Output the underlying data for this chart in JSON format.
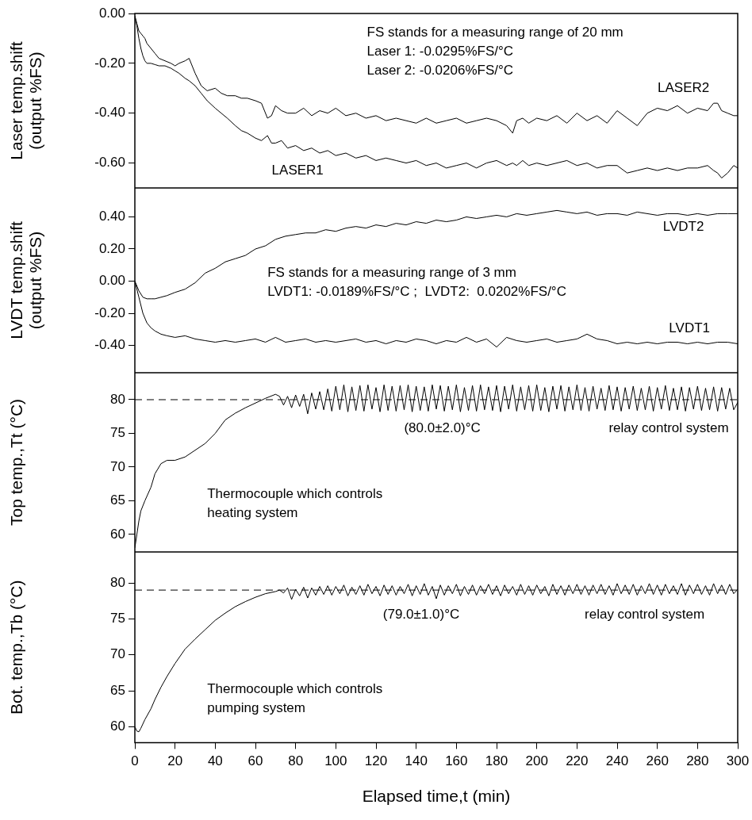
{
  "chart_data": [
    {
      "type": "line",
      "ylabel": "Laser temp.shift\n(output %FS)",
      "xlim": [
        0,
        300
      ],
      "ylim": [
        -0.7,
        0
      ],
      "yticks": [
        {
          "value": 0,
          "label": "0.00"
        },
        {
          "value": -0.2,
          "label": "-0.20"
        },
        {
          "value": -0.4,
          "label": "-0.40"
        },
        {
          "value": -0.6,
          "label": "-0.60"
        }
      ],
      "tick_labels": "y",
      "legend": false,
      "annotations": [
        "FS stands for a measuring range of 20 mm",
        "Laser 1: -0.0295%FS/°C",
        "Laser 2: -0.0206%FS/°C"
      ],
      "x": [
        0,
        1,
        2,
        3,
        4,
        5,
        6,
        8,
        10,
        12,
        15,
        18,
        20,
        22,
        25,
        27,
        30,
        33,
        36,
        40,
        43,
        46,
        50,
        53,
        56,
        60,
        63,
        66,
        68,
        70,
        73,
        76,
        80,
        84,
        88,
        92,
        96,
        100,
        105,
        110,
        115,
        120,
        125,
        130,
        135,
        140,
        145,
        150,
        155,
        160,
        165,
        170,
        175,
        180,
        185,
        188,
        190,
        193,
        196,
        200,
        205,
        210,
        215,
        220,
        225,
        230,
        235,
        240,
        245,
        250,
        255,
        260,
        265,
        270,
        275,
        280,
        285,
        288,
        290,
        292,
        295,
        298,
        300
      ],
      "series": [
        {
          "name": "LASER1",
          "color": "#000000",
          "values": [
            -0.01,
            -0.05,
            -0.1,
            -0.14,
            -0.17,
            -0.19,
            -0.2,
            -0.2,
            -0.205,
            -0.21,
            -0.21,
            -0.22,
            -0.23,
            -0.24,
            -0.26,
            -0.27,
            -0.29,
            -0.32,
            -0.35,
            -0.38,
            -0.4,
            -0.42,
            -0.45,
            -0.47,
            -0.48,
            -0.5,
            -0.51,
            -0.49,
            -0.52,
            -0.52,
            -0.51,
            -0.54,
            -0.53,
            -0.55,
            -0.54,
            -0.56,
            -0.55,
            -0.57,
            -0.56,
            -0.58,
            -0.57,
            -0.59,
            -0.58,
            -0.59,
            -0.6,
            -0.59,
            -0.61,
            -0.6,
            -0.62,
            -0.61,
            -0.6,
            -0.62,
            -0.6,
            -0.59,
            -0.61,
            -0.6,
            -0.61,
            -0.59,
            -0.61,
            -0.6,
            -0.61,
            -0.6,
            -0.59,
            -0.61,
            -0.6,
            -0.62,
            -0.61,
            -0.61,
            -0.64,
            -0.63,
            -0.62,
            -0.63,
            -0.62,
            -0.63,
            -0.62,
            -0.62,
            -0.61,
            -0.63,
            -0.64,
            -0.66,
            -0.64,
            -0.61,
            -0.62
          ]
        },
        {
          "name": "LASER2",
          "color": "#000000",
          "values": [
            -0.01,
            -0.04,
            -0.07,
            -0.08,
            -0.09,
            -0.1,
            -0.12,
            -0.14,
            -0.16,
            -0.18,
            -0.19,
            -0.2,
            -0.21,
            -0.2,
            -0.19,
            -0.18,
            -0.24,
            -0.29,
            -0.31,
            -0.3,
            -0.32,
            -0.33,
            -0.33,
            -0.34,
            -0.34,
            -0.35,
            -0.36,
            -0.42,
            -0.41,
            -0.37,
            -0.39,
            -0.4,
            -0.4,
            -0.38,
            -0.41,
            -0.39,
            -0.4,
            -0.38,
            -0.41,
            -0.4,
            -0.42,
            -0.41,
            -0.43,
            -0.42,
            -0.43,
            -0.44,
            -0.42,
            -0.44,
            -0.43,
            -0.42,
            -0.44,
            -0.43,
            -0.42,
            -0.43,
            -0.45,
            -0.48,
            -0.43,
            -0.42,
            -0.44,
            -0.42,
            -0.43,
            -0.41,
            -0.44,
            -0.4,
            -0.43,
            -0.41,
            -0.44,
            -0.39,
            -0.42,
            -0.45,
            -0.4,
            -0.38,
            -0.39,
            -0.37,
            -0.4,
            -0.38,
            -0.39,
            -0.36,
            -0.36,
            -0.39,
            -0.4,
            -0.41,
            -0.41
          ]
        }
      ]
    },
    {
      "type": "line",
      "ylabel": "LVDT temp.shift\n(output %FS)",
      "xlim": [
        0,
        300
      ],
      "ylim": [
        -0.57,
        0.58
      ],
      "yticks": [
        {
          "value": 0.4,
          "label": "0.40"
        },
        {
          "value": 0.2,
          "label": "0.20"
        },
        {
          "value": 0,
          "label": "0.00"
        },
        {
          "value": -0.2,
          "label": "-0.20"
        },
        {
          "value": -0.4,
          "label": "-0.40"
        }
      ],
      "tick_labels": "y",
      "legend": false,
      "annotations": [
        "FS stands for a measuring range of 3 mm",
        "LVDT1: -0.0189%FS/°C ;  LVDT2:  0.0202%FS/°C"
      ],
      "x": [
        0,
        2,
        4,
        6,
        8,
        10,
        13,
        16,
        20,
        25,
        30,
        35,
        40,
        45,
        50,
        55,
        60,
        65,
        70,
        75,
        80,
        85,
        90,
        95,
        100,
        105,
        110,
        115,
        120,
        125,
        130,
        135,
        140,
        145,
        150,
        155,
        160,
        165,
        170,
        175,
        180,
        185,
        190,
        195,
        200,
        205,
        210,
        215,
        220,
        225,
        230,
        235,
        240,
        245,
        250,
        255,
        260,
        265,
        270,
        275,
        280,
        285,
        290,
        295,
        300
      ],
      "series": [
        {
          "name": "LVDT1",
          "color": "#000000",
          "values": [
            0,
            -0.1,
            -0.2,
            -0.26,
            -0.29,
            -0.31,
            -0.33,
            -0.34,
            -0.35,
            -0.34,
            -0.36,
            -0.37,
            -0.38,
            -0.37,
            -0.38,
            -0.37,
            -0.36,
            -0.38,
            -0.35,
            -0.38,
            -0.37,
            -0.36,
            -0.38,
            -0.37,
            -0.38,
            -0.37,
            -0.36,
            -0.38,
            -0.37,
            -0.39,
            -0.37,
            -0.38,
            -0.36,
            -0.37,
            -0.39,
            -0.37,
            -0.38,
            -0.35,
            -0.38,
            -0.36,
            -0.41,
            -0.35,
            -0.37,
            -0.38,
            -0.37,
            -0.36,
            -0.38,
            -0.37,
            -0.36,
            -0.33,
            -0.36,
            -0.37,
            -0.39,
            -0.38,
            -0.39,
            -0.38,
            -0.39,
            -0.38,
            -0.38,
            -0.39,
            -0.38,
            -0.39,
            -0.38,
            -0.38,
            -0.39
          ]
        },
        {
          "name": "LVDT2",
          "color": "#000000",
          "values": [
            0,
            -0.06,
            -0.1,
            -0.11,
            -0.11,
            -0.11,
            -0.1,
            -0.09,
            -0.07,
            -0.05,
            -0.01,
            0.05,
            0.08,
            0.12,
            0.14,
            0.16,
            0.2,
            0.22,
            0.26,
            0.28,
            0.29,
            0.3,
            0.3,
            0.32,
            0.31,
            0.33,
            0.34,
            0.33,
            0.35,
            0.34,
            0.36,
            0.35,
            0.37,
            0.36,
            0.38,
            0.37,
            0.38,
            0.4,
            0.39,
            0.4,
            0.41,
            0.4,
            0.42,
            0.41,
            0.42,
            0.43,
            0.44,
            0.43,
            0.42,
            0.43,
            0.41,
            0.42,
            0.42,
            0.41,
            0.43,
            0.42,
            0.41,
            0.42,
            0.42,
            0.41,
            0.42,
            0.41,
            0.42,
            0.42,
            0.42
          ]
        }
      ]
    },
    {
      "type": "line",
      "ylabel": "Top temp.,Tt (°C)",
      "xlim": [
        0,
        300
      ],
      "ylim": [
        57.4,
        84
      ],
      "yticks": [
        60,
        65,
        70,
        75,
        80
      ],
      "tick_labels": "y",
      "legend": false,
      "annotations": [
        "relay control system",
        "Thermocouple which controls\nheating system"
      ],
      "ref_lines": [
        {
          "axis": "y",
          "value": 80,
          "label": "(80.0±2.0)°C",
          "color": "#000000",
          "line_style": "dashed"
        }
      ],
      "x": [
        0,
        1,
        2,
        3,
        5,
        8,
        10,
        13,
        16,
        20,
        25,
        30,
        35,
        40,
        45,
        50,
        55,
        60,
        65,
        70,
        72,
        74,
        76,
        78,
        80,
        82,
        84,
        86,
        88,
        90,
        92,
        94,
        96,
        98,
        100,
        102,
        104,
        106,
        108,
        110,
        112,
        114,
        116,
        118,
        120,
        122,
        124,
        126,
        128,
        130,
        132,
        134,
        136,
        138,
        140,
        142,
        144,
        146,
        148,
        150,
        152,
        154,
        156,
        158,
        160,
        162,
        164,
        166,
        168,
        170,
        172,
        174,
        176,
        178,
        180,
        182,
        184,
        186,
        188,
        190,
        192,
        194,
        196,
        198,
        200,
        202,
        204,
        206,
        208,
        210,
        212,
        214,
        216,
        218,
        220,
        222,
        224,
        226,
        228,
        230,
        232,
        234,
        236,
        238,
        240,
        242,
        244,
        246,
        248,
        250,
        252,
        254,
        256,
        258,
        260,
        262,
        264,
        266,
        268,
        270,
        272,
        274,
        276,
        278,
        280,
        282,
        284,
        286,
        288,
        290,
        292,
        294,
        296,
        298,
        300
      ],
      "series": [
        {
          "color": "#000000",
          "values": [
            58,
            60,
            62,
            63.5,
            65,
            67,
            69,
            70.5,
            71,
            71,
            71.5,
            72.5,
            73.5,
            75,
            77,
            78,
            78.8,
            79.5,
            80.2,
            80.8,
            80.5,
            79.2,
            80.5,
            78.8,
            80.7,
            79.0,
            80.8,
            77.9,
            81.0,
            78.6,
            81.2,
            78.5,
            81.6,
            78.3,
            82.0,
            78.5,
            82.2,
            78.2,
            81.9,
            78.4,
            82.1,
            78.3,
            82.2,
            78.6,
            81.8,
            78.2,
            82.2,
            78.4,
            82.0,
            78.3,
            82.1,
            78.5,
            82.2,
            78.2,
            82.0,
            78.4,
            81.9,
            78.3,
            82.2,
            78.6,
            82.1,
            78.3,
            82.0,
            78.5,
            82.2,
            78.2,
            81.8,
            78.4,
            82.1,
            78.3,
            82.2,
            78.5,
            81.9,
            78.4,
            82.1,
            78.2,
            82.0,
            78.6,
            82.2,
            78.3,
            81.9,
            78.5,
            82.1,
            78.3,
            82.2,
            78.4,
            81.8,
            78.2,
            82.0,
            78.6,
            82.1,
            78.3,
            81.9,
            78.5,
            82.2,
            78.4,
            81.8,
            78.3,
            82.0,
            78.6,
            81.7,
            78.4,
            82.1,
            78.5,
            81.9,
            78.3,
            81.8,
            78.6,
            82.0,
            78.4,
            81.7,
            78.5,
            82.0,
            78.3,
            81.8,
            78.6,
            82.1,
            78.4,
            81.7,
            78.5,
            81.9,
            78.3,
            81.8,
            78.6,
            82.0,
            78.4,
            81.7,
            78.5,
            81.9,
            78.3,
            81.8,
            78.6,
            81.7,
            78.5,
            79.6
          ]
        }
      ]
    },
    {
      "type": "line",
      "ylabel": "Bot. temp.,Tb (°C)",
      "xlabel": "Elapsed time,t (min)",
      "xlim": [
        0,
        300
      ],
      "xticks": [
        0,
        20,
        40,
        60,
        80,
        100,
        120,
        140,
        160,
        180,
        200,
        220,
        240,
        260,
        280,
        300
      ],
      "ylim": [
        57.8,
        84.3
      ],
      "yticks": [
        60,
        65,
        70,
        75,
        80
      ],
      "legend": false,
      "annotations": [
        "relay control system",
        "Thermocouple which controls\npumping system"
      ],
      "ref_lines": [
        {
          "axis": "y",
          "value": 79,
          "label": "(79.0±1.0)°C",
          "color": "#000000",
          "line_style": "dashed"
        }
      ],
      "x": [
        0,
        1,
        2,
        3,
        5,
        8,
        10,
        13,
        16,
        20,
        25,
        30,
        35,
        40,
        45,
        50,
        55,
        60,
        65,
        70,
        72,
        74,
        76,
        78,
        80,
        82,
        84,
        86,
        88,
        90,
        92,
        94,
        96,
        98,
        100,
        102,
        104,
        106,
        108,
        110,
        112,
        114,
        116,
        118,
        120,
        122,
        124,
        126,
        128,
        130,
        132,
        134,
        136,
        138,
        140,
        142,
        144,
        146,
        148,
        150,
        152,
        154,
        156,
        158,
        160,
        162,
        164,
        166,
        168,
        170,
        172,
        174,
        176,
        178,
        180,
        182,
        184,
        186,
        188,
        190,
        192,
        194,
        196,
        198,
        200,
        202,
        204,
        206,
        208,
        210,
        212,
        214,
        216,
        218,
        220,
        222,
        224,
        226,
        228,
        230,
        232,
        234,
        236,
        238,
        240,
        242,
        244,
        246,
        248,
        250,
        252,
        254,
        256,
        258,
        260,
        262,
        264,
        266,
        268,
        270,
        272,
        274,
        276,
        278,
        280,
        282,
        284,
        286,
        288,
        290,
        292,
        294,
        296,
        298,
        300
      ],
      "series": [
        {
          "color": "#000000",
          "values": [
            60,
            59.4,
            59.3,
            59.8,
            61,
            62.5,
            63.8,
            65.5,
            67,
            68.8,
            70.8,
            72.2,
            73.5,
            74.8,
            75.8,
            76.7,
            77.4,
            78,
            78.5,
            78.8,
            79,
            78.6,
            79.3,
            77.7,
            79.1,
            78.2,
            79.4,
            77.9,
            79.3,
            78.3,
            79.5,
            78.4,
            79.6,
            78.3,
            79.5,
            78.5,
            79.7,
            78.2,
            79.4,
            78.4,
            79.6,
            78.3,
            79.8,
            78.5,
            79.5,
            78.2,
            79.7,
            78.4,
            79.6,
            78.3,
            79.5,
            78.5,
            79.8,
            78.2,
            79.6,
            78.4,
            79.9,
            78.3,
            79.5,
            77.8,
            79.7,
            78.3,
            79.6,
            78.5,
            79.8,
            78.2,
            79.5,
            78.4,
            79.7,
            78.3,
            79.6,
            78.5,
            79.8,
            78.4,
            79.6,
            78.2,
            79.7,
            78.5,
            79.5,
            78.3,
            79.8,
            78.4,
            79.6,
            78.3,
            79.7,
            78.5,
            79.5,
            78.2,
            79.8,
            78.4,
            79.6,
            78.3,
            79.7,
            78.5,
            79.8,
            78.4,
            79.6,
            78.3,
            79.7,
            78.5,
            79.8,
            78.4,
            79.6,
            78.3,
            79.9,
            78.5,
            79.7,
            78.4,
            79.8,
            78.3,
            79.6,
            78.5,
            79.9,
            78.4,
            79.7,
            78.3,
            79.8,
            78.5,
            79.6,
            78.4,
            79.9,
            78.3,
            79.7,
            78.5,
            79.8,
            78.4,
            79.6,
            78.3,
            79.9,
            78.5,
            79.7,
            78.4,
            79.8,
            78.5,
            79.1
          ]
        }
      ]
    }
  ]
}
